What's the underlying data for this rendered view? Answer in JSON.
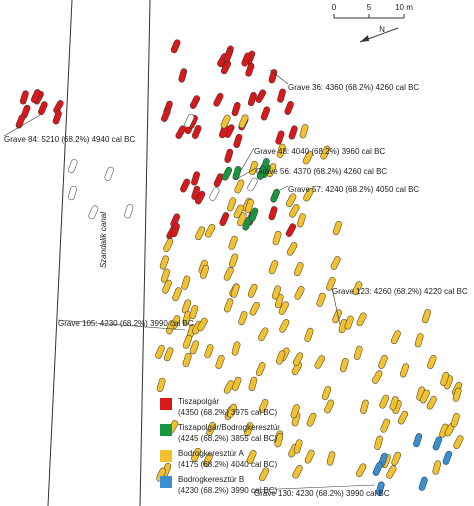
{
  "scale": {
    "ticks": [
      "0",
      "5",
      "10 m"
    ]
  },
  "north": "N",
  "canal": "Szandalik canal",
  "annotations": [
    "Grave 36: 4360 (68.2%) 4260 cal BC",
    "Grave 84: 5210 (68.2%) 4940 cal BC",
    "Grave 48: 4040 (68.2%) 3960 cal BC",
    "Grave 56: 4370 (68.2%) 4260 cal BC",
    "Grave 57: 4240 (68.2%) 4050 cal BC",
    "Grave 123: 4260 (68.2%) 4220 cal BC",
    "Grave 105: 4230 (68.2%) 3990 cal BC",
    "Grave 130: 4230 (68.2%) 3990 cal BC"
  ],
  "legend": [
    {
      "name": "Tiszapolgár",
      "range": "(4350 (68.2%) 3975 cal BC)",
      "color": "#d7191c"
    },
    {
      "name": "Tiszapolgár/Bodrogkeresztúr",
      "range": "(4245 (68.2%) 3855 cal BC)",
      "color": "#1a9641"
    },
    {
      "name": "Bodrogkeresztúr A",
      "range": "(4175 (68.2%) 4040 cal BC)",
      "color": "#f2c12e"
    },
    {
      "name": "Bodrogkeresztúr B",
      "range": "(4230 (68.2%) 3990 cal BC)",
      "color": "#3b8fd1"
    }
  ]
}
